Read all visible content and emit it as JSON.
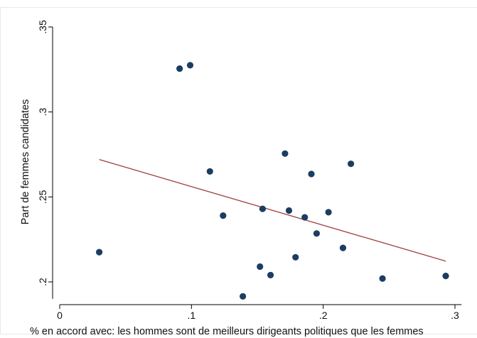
{
  "chart_data": {
    "type": "scatter",
    "xlabel": "% en accord avec: les hommes sont de meilleurs dirigeants politiques que les femmes",
    "ylabel": "Part de femmes candidates",
    "xlim": [
      0,
      0.305
    ],
    "ylim": [
      0.19,
      0.35
    ],
    "x_ticks": [
      {
        "value": 0,
        "label": "0"
      },
      {
        "value": 0.1,
        "label": ".1"
      },
      {
        "value": 0.2,
        "label": ".2"
      },
      {
        "value": 0.3,
        "label": ".3"
      }
    ],
    "y_ticks": [
      {
        "value": 0.2,
        "label": ".2"
      },
      {
        "value": 0.25,
        "label": ".25"
      },
      {
        "value": 0.3,
        "label": ".3"
      },
      {
        "value": 0.35,
        "label": ".35"
      }
    ],
    "grid": false,
    "legend": "none",
    "points": [
      {
        "x": 0.03,
        "y": 0.2175
      },
      {
        "x": 0.091,
        "y": 0.3255
      },
      {
        "x": 0.099,
        "y": 0.3275
      },
      {
        "x": 0.114,
        "y": 0.265
      },
      {
        "x": 0.124,
        "y": 0.239
      },
      {
        "x": 0.139,
        "y": 0.1915
      },
      {
        "x": 0.152,
        "y": 0.209
      },
      {
        "x": 0.154,
        "y": 0.243
      },
      {
        "x": 0.16,
        "y": 0.204
      },
      {
        "x": 0.171,
        "y": 0.2755
      },
      {
        "x": 0.174,
        "y": 0.242
      },
      {
        "x": 0.179,
        "y": 0.2145
      },
      {
        "x": 0.186,
        "y": 0.238
      },
      {
        "x": 0.191,
        "y": 0.2635
      },
      {
        "x": 0.195,
        "y": 0.2285
      },
      {
        "x": 0.204,
        "y": 0.241
      },
      {
        "x": 0.215,
        "y": 0.22
      },
      {
        "x": 0.221,
        "y": 0.2695
      },
      {
        "x": 0.245,
        "y": 0.202
      },
      {
        "x": 0.293,
        "y": 0.2035
      }
    ],
    "fit_line": {
      "x": [
        0.03,
        0.293
      ],
      "y": [
        0.272,
        0.2122
      ]
    },
    "colors": {
      "marker": "#1c3d62",
      "fit_line": "#a0403e",
      "axis": "#000000",
      "frame": "#e8e8e8"
    }
  }
}
